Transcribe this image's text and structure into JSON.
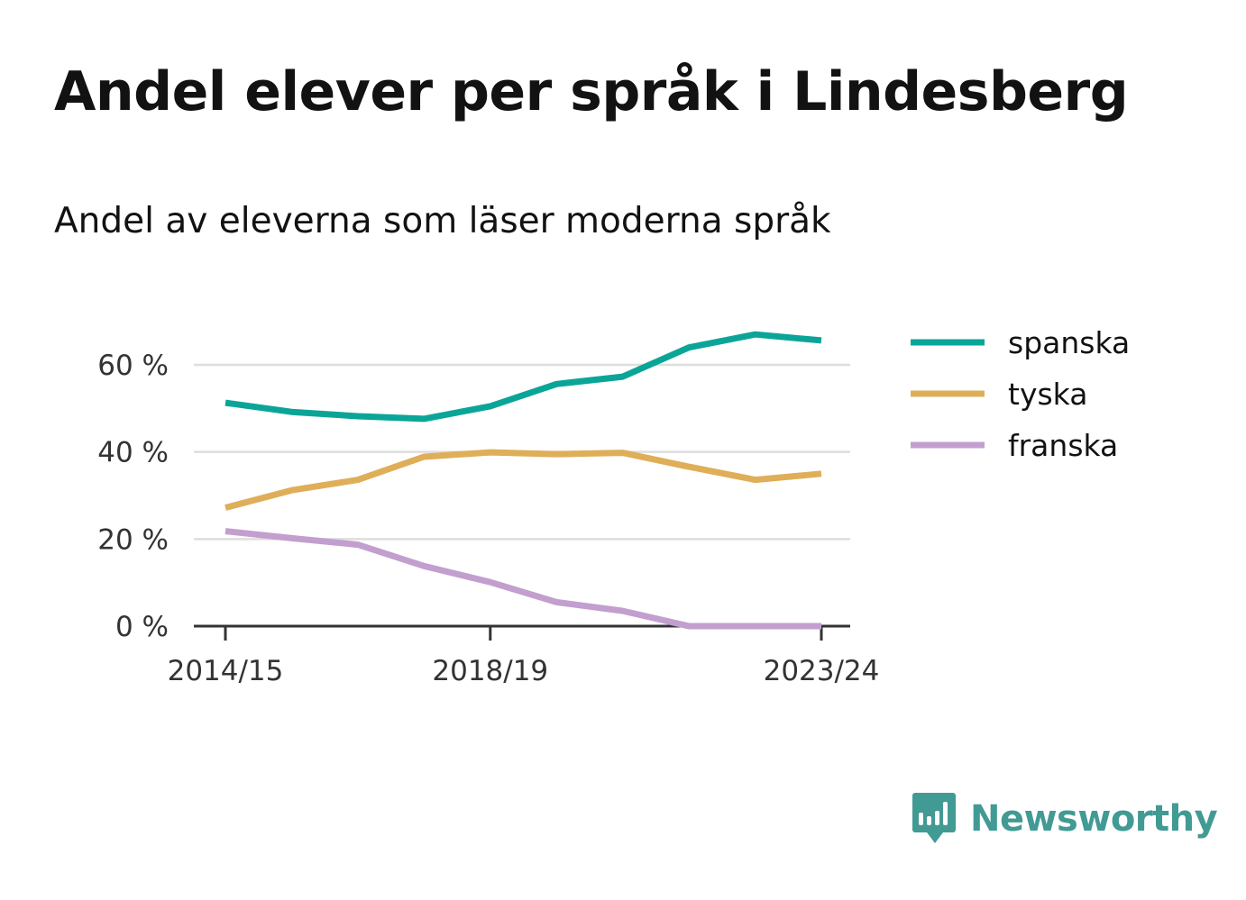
{
  "title": "Andel elever per språk i Lindesberg",
  "subtitle": "Andel av eleverna som läser moderna språk",
  "brand": {
    "name": "Newsworthy",
    "color": "#429a94",
    "icon": "chat-bubble-bar-chart-icon"
  },
  "colors": {
    "grid": "#dedede",
    "axis": "#333333"
  },
  "chart_data": {
    "type": "line",
    "x": [
      "2014/15",
      "2015/16",
      "2016/17",
      "2017/18",
      "2018/19",
      "2019/20",
      "2020/21",
      "2021/22",
      "2022/23",
      "2023/24"
    ],
    "x_tick_labels": [
      "2014/15",
      "2018/19",
      "2023/24"
    ],
    "y_ticks": [
      0,
      20,
      40,
      60
    ],
    "y_tick_labels": [
      "0 %",
      "20 %",
      "40 %",
      "60 %"
    ],
    "ylim": [
      0,
      70
    ],
    "grid": true,
    "legend_position": "right",
    "xlabel": "",
    "ylabel": "",
    "series": [
      {
        "name": "spanska",
        "color": "#0ba598",
        "values": [
          51.3,
          49.2,
          48.2,
          47.6,
          50.5,
          55.6,
          57.3,
          64.0,
          67.0,
          65.6
        ]
      },
      {
        "name": "tyska",
        "color": "#dfae58",
        "values": [
          27.2,
          31.2,
          33.6,
          38.9,
          39.9,
          39.5,
          39.8,
          36.6,
          33.6,
          35.0
        ]
      },
      {
        "name": "franska",
        "color": "#c29fcf",
        "values": [
          21.8,
          20.2,
          18.7,
          13.8,
          10.1,
          5.5,
          3.5,
          0.0,
          0.0,
          0.0
        ]
      }
    ]
  }
}
